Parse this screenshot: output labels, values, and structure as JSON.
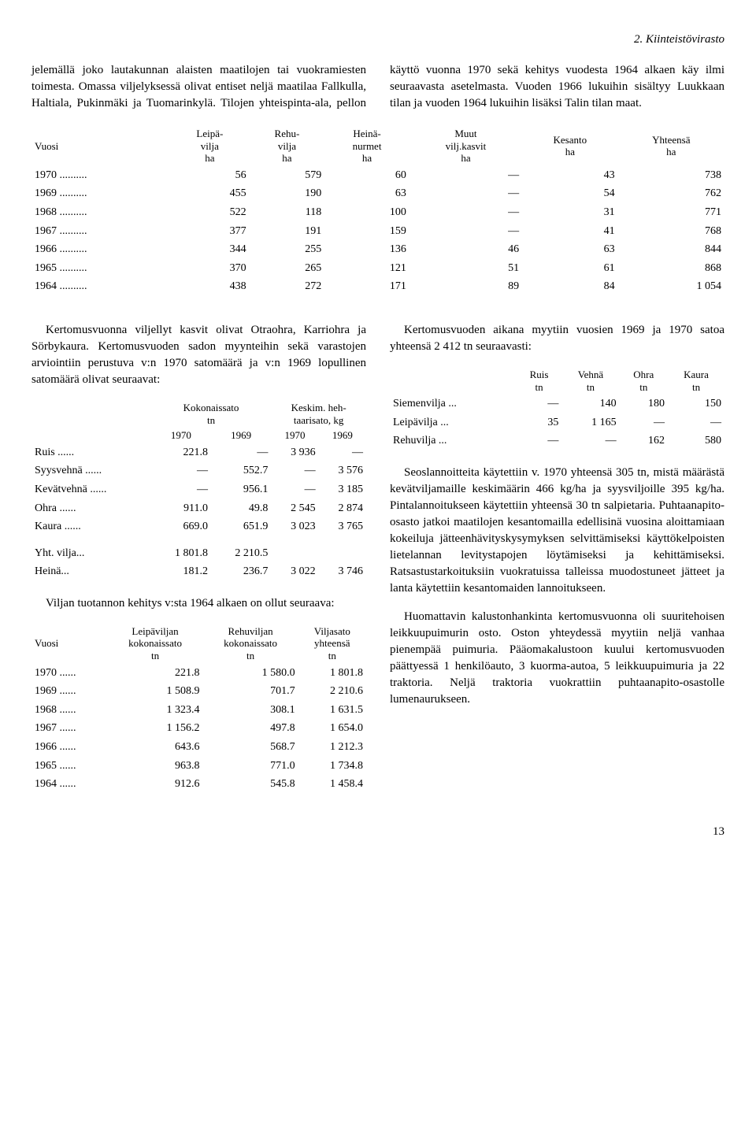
{
  "section_title": "2. Kiinteistövirasto",
  "intro_para": "jelemällä joko lautakunnan alaisten maatilojen tai vuokramiesten toimesta. Omassa viljelyksessä olivat entiset neljä maatilaa Fallkulla, Haltiala, Pukinmäki ja Tuomarinkylä. Tilojen yhteispinta-ala, pellon käyttö vuonna 1970 sekä kehitys vuodesta 1964 alkaen käy ilmi seuraavasta asetelmasta. Vuoden 1966 lukuihin sisältyy Luukkaan tilan ja vuoden 1964 lukuihin lisäksi Talin tilan maat.",
  "main_table": {
    "headers": [
      "Vuosi",
      "Leipä-\nvilja\nha",
      "Rehu-\nvilja\nha",
      "Heinä-\nnurmet\nha",
      "Muut\nvilj.kasvit\nha",
      "Kesanto\nha",
      "Yhteensä\nha"
    ],
    "rows": [
      [
        "1970",
        "56",
        "579",
        "60",
        "—",
        "43",
        "738"
      ],
      [
        "1969",
        "455",
        "190",
        "63",
        "—",
        "54",
        "762"
      ],
      [
        "1968",
        "522",
        "118",
        "100",
        "—",
        "31",
        "771"
      ],
      [
        "1967",
        "377",
        "191",
        "159",
        "—",
        "41",
        "768"
      ],
      [
        "1966",
        "344",
        "255",
        "136",
        "46",
        "63",
        "844"
      ],
      [
        "1965",
        "370",
        "265",
        "121",
        "51",
        "61",
        "868"
      ],
      [
        "1964",
        "438",
        "272",
        "171",
        "89",
        "84",
        "1 054"
      ]
    ]
  },
  "left_para1": "Kertomusvuonna viljellyt kasvit olivat Otraohra, Karriohra ja Sörbykaura. Kertomusvuoden sadon myynteihin sekä varastojen arviointiin perustuva v:n 1970 satomäärä ja v:n 1969 lopullinen satomäärä olivat seuraavat:",
  "sato_table": {
    "h1": "Kokonaissato\ntn",
    "h2": "Keskim. heh-\ntaarisato, kg",
    "years": [
      "1970",
      "1969",
      "1970",
      "1969"
    ],
    "rows": [
      [
        "Ruis",
        "221.8",
        "—",
        "3 936",
        "—"
      ],
      [
        "Syysvehnä",
        "—",
        "552.7",
        "—",
        "3 576"
      ],
      [
        "Kevätvehnä",
        "—",
        "956.1",
        "—",
        "3 185"
      ],
      [
        "Ohra",
        "911.0",
        "49.8",
        "2 545",
        "2 874"
      ],
      [
        "Kaura",
        "669.0",
        "651.9",
        "3 023",
        "3 765"
      ]
    ],
    "sum_rows": [
      [
        "Yht. vilja",
        "1 801.8",
        "2 210.5",
        "",
        ""
      ],
      [
        "Heinä",
        "181.2",
        "236.7",
        "3 022",
        "3 746"
      ]
    ]
  },
  "left_para2": "Viljan tuotannon kehitys v:sta 1964 alkaen on ollut seuraava:",
  "prod_table": {
    "headers": [
      "Vuosi",
      "Leipäviljan\nkokonaissato\ntn",
      "Rehuviljan\nkokonaissato\ntn",
      "Viljasato\nyhteensä\ntn"
    ],
    "rows": [
      [
        "1970",
        "221.8",
        "1 580.0",
        "1 801.8"
      ],
      [
        "1969",
        "1 508.9",
        "701.7",
        "2 210.6"
      ],
      [
        "1968",
        "1 323.4",
        "308.1",
        "1 631.5"
      ],
      [
        "1967",
        "1 156.2",
        "497.8",
        "1 654.0"
      ],
      [
        "1966",
        "643.6",
        "568.7",
        "1 212.3"
      ],
      [
        "1965",
        "963.8",
        "771.0",
        "1 734.8"
      ],
      [
        "1964",
        "912.6",
        "545.8",
        "1 458.4"
      ]
    ]
  },
  "right_para1": "Kertomusvuoden aikana myytiin vuosien 1969 ja 1970 satoa yhteensä 2 412 tn seuraavasti:",
  "sales_table": {
    "headers": [
      "",
      "Ruis\ntn",
      "Vehnä\ntn",
      "Ohra\ntn",
      "Kaura\ntn"
    ],
    "rows": [
      [
        "Siemenvilja",
        "—",
        "140",
        "180",
        "150"
      ],
      [
        "Leipävilja",
        "35",
        "1 165",
        "—",
        "—"
      ],
      [
        "Rehuvilja",
        "—",
        "—",
        "162",
        "580"
      ]
    ]
  },
  "right_para2": "Seoslannoitteita käytettiin v. 1970 yhteensä 305 tn, mistä määrästä kevätviljamaille keskimäärin 466 kg/ha ja syysviljoille 395 kg/ha. Pintalannoitukseen käytettiin yhteensä 30 tn salpietaria. Puhtaanapito-osasto jatkoi maatilojen kesantomailla edellisinä vuosina aloittamiaan kokeiluja jätteenhävityskysymyksen selvittämiseksi käyttökelpoisten lietelannan levitystapojen löytämiseksi ja kehittämiseksi. Ratsastustarkoituksiin vuokratuissa talleissa muodostuneet jätteet ja lanta käytettiin kesantomaiden lannoitukseen.",
  "right_para3": "Huomattavin kalustonhankinta kertomusvuonna oli suuritehoisen leikkuupuimurin osto. Oston yhteydessä myytiin neljä vanhaa pienempää puimuria. Pääomakalustoon kuului kertomusvuoden päättyessä 1 henkilöauto, 3 kuorma-autoa, 5 leikkuupuimuria ja 22 traktoria. Neljä traktoria vuokrattiin puhtaanapito-osastolle lumenaurukseen.",
  "page_number": "13",
  "dots": "..........",
  "dots_s": "......",
  "dots_m": "..."
}
